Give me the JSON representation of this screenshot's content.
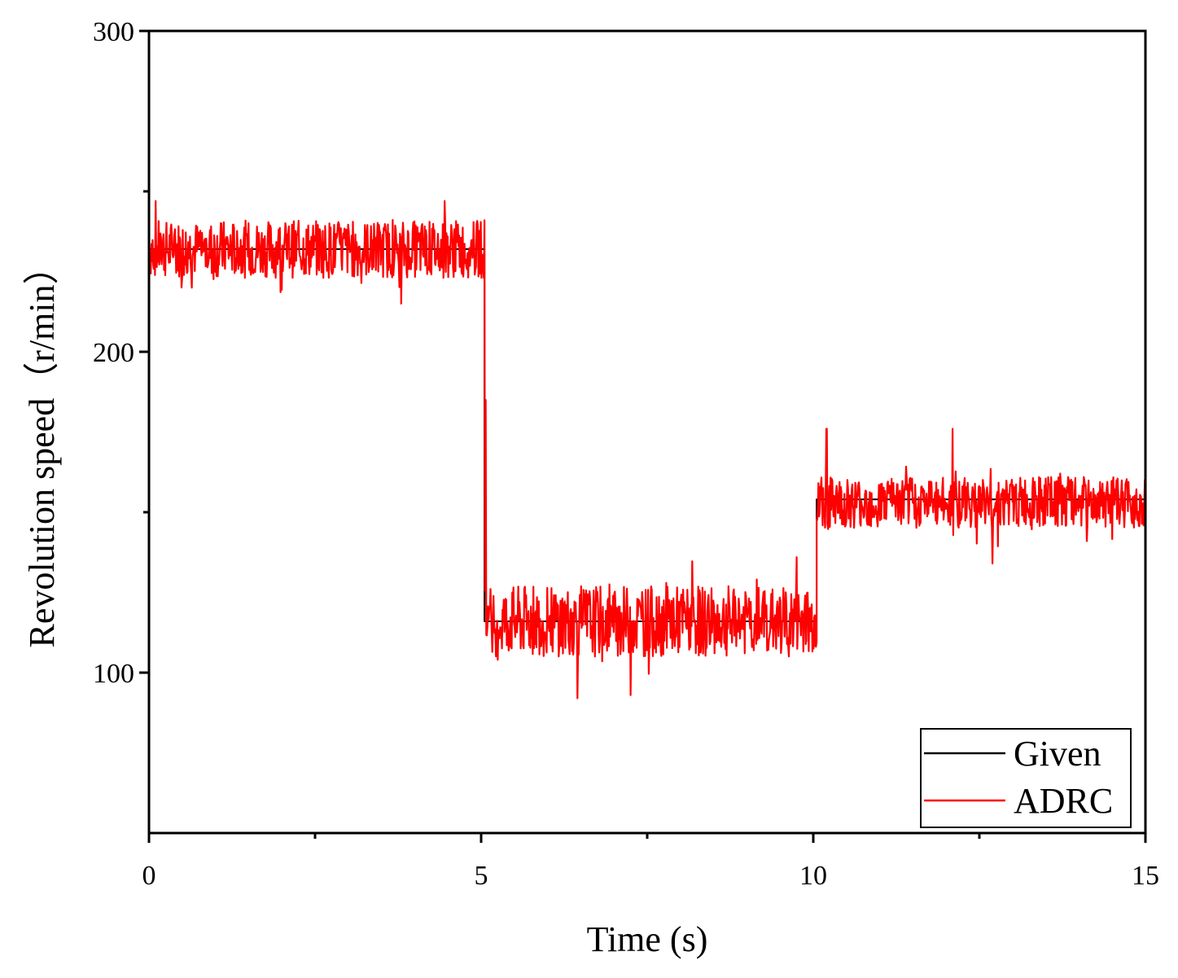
{
  "chart_data": {
    "type": "line",
    "title": "",
    "xlabel": "Time (s)",
    "ylabel": "Revolution speed（r/min）",
    "xlim": [
      0,
      15
    ],
    "ylim": [
      50,
      300
    ],
    "x_ticks": [
      0,
      5,
      10,
      15
    ],
    "x_tick_labels": [
      "0",
      "5",
      "10",
      "15"
    ],
    "x_minor_ticks": [
      2.5,
      7.5,
      12.5
    ],
    "y_ticks": [
      100,
      200,
      300
    ],
    "y_tick_labels": [
      "100",
      "200",
      "300"
    ],
    "y_minor_ticks": [
      150,
      250
    ],
    "grid": false,
    "legend_position": "bottom-right",
    "series": [
      {
        "name": "Given",
        "color": "#000000",
        "points": [
          [
            0,
            232
          ],
          [
            5.05,
            232
          ],
          [
            5.05,
            116
          ],
          [
            10.05,
            116
          ],
          [
            10.05,
            154
          ],
          [
            15,
            154
          ]
        ]
      },
      {
        "name": "ADRC",
        "color": "#ff0000",
        "noise_segments": [
          {
            "x_start": 0,
            "x_end": 5.05,
            "mean": 232,
            "amplitude": 9
          },
          {
            "x_start": 5.05,
            "x_end": 10.05,
            "mean": 116,
            "amplitude": 11
          },
          {
            "x_start": 10.05,
            "x_end": 15,
            "mean": 153,
            "amplitude": 8
          }
        ],
        "extremes": [
          {
            "x": 0.1,
            "y": 247
          },
          {
            "x": 4.45,
            "y": 247
          },
          {
            "x": 3.8,
            "y": 215
          },
          {
            "x": 5.05,
            "y": 241
          },
          {
            "x": 5.07,
            "y": 185
          },
          {
            "x": 6.45,
            "y": 92
          },
          {
            "x": 7.25,
            "y": 93
          },
          {
            "x": 9.75,
            "y": 136
          },
          {
            "x": 10.2,
            "y": 176
          },
          {
            "x": 12.1,
            "y": 176
          },
          {
            "x": 12.7,
            "y": 134
          }
        ]
      }
    ]
  }
}
